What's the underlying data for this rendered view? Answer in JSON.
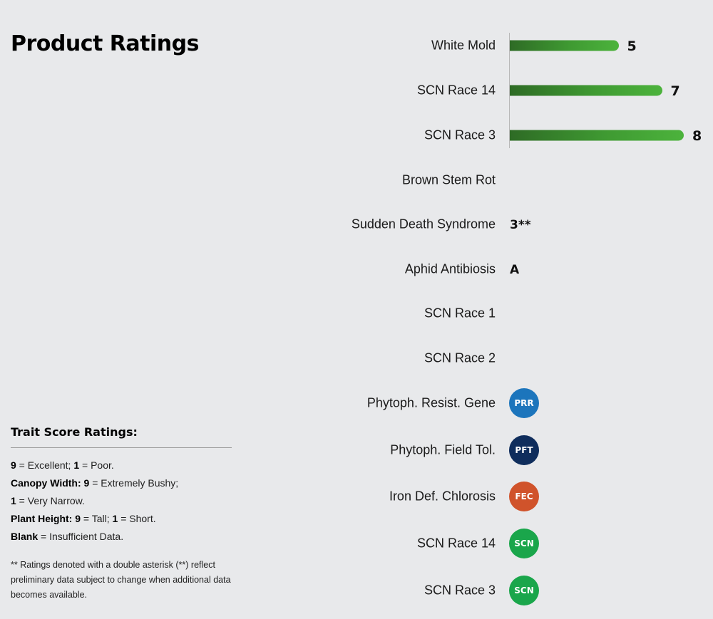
{
  "page": {
    "title": "Product Ratings"
  },
  "chart_data": {
    "type": "bar",
    "orientation": "horizontal",
    "xlim": [
      0,
      8
    ],
    "categories": [
      "White Mold",
      "SCN Race 14",
      "SCN Race 3"
    ],
    "values": [
      5,
      7,
      8
    ],
    "value_labels": [
      "5",
      "7",
      "8"
    ],
    "bar_color": "#3f9a32"
  },
  "text_rows": [
    {
      "label": "Brown Stem Rot",
      "value": ""
    },
    {
      "label": "Sudden Death Syndrome",
      "value": "3**"
    },
    {
      "label": "Aphid Antibiosis",
      "value": "A"
    },
    {
      "label": "SCN Race 1",
      "value": ""
    },
    {
      "label": "SCN Race 2",
      "value": ""
    }
  ],
  "badge_rows": [
    {
      "label": "Phytoph. Resist. Gene",
      "badge": "PRR",
      "color": "#1c75bc",
      "icon": "prr-badge-icon"
    },
    {
      "label": "Phytoph. Field Tol.",
      "badge": "PFT",
      "color": "#0f2d5c",
      "icon": "pft-badge-icon"
    },
    {
      "label": "Iron Def. Chlorosis",
      "badge": "FEC",
      "color": "#d0532b",
      "icon": "fec-badge-icon"
    },
    {
      "label": "SCN Race 14",
      "badge": "SCN",
      "color": "#1aa64b",
      "icon": "scn-badge-icon"
    },
    {
      "label": "SCN Race 3",
      "badge": "SCN",
      "color": "#1aa64b",
      "icon": "scn-badge-icon"
    }
  ],
  "legend": {
    "title": "Trait Score Ratings:",
    "line1_a": "9",
    "line1_b": " = Excellent; ",
    "line1_c": "1",
    "line1_d": " = Poor.",
    "line2_a": "Canopy Width: 9",
    "line2_b": " = Extremely Bushy;",
    "line3_a": "1",
    "line3_b": " = Very Narrow.",
    "line4_a": "Plant Height: 9",
    "line4_b": " = Tall; ",
    "line4_c": "1",
    "line4_d": " = Short.",
    "line5_a": "Blank",
    "line5_b": " = Insufficient Data.",
    "note": "** Ratings denoted with a double asterisk (**) reflect preliminary data subject to change when additional data becomes available."
  }
}
